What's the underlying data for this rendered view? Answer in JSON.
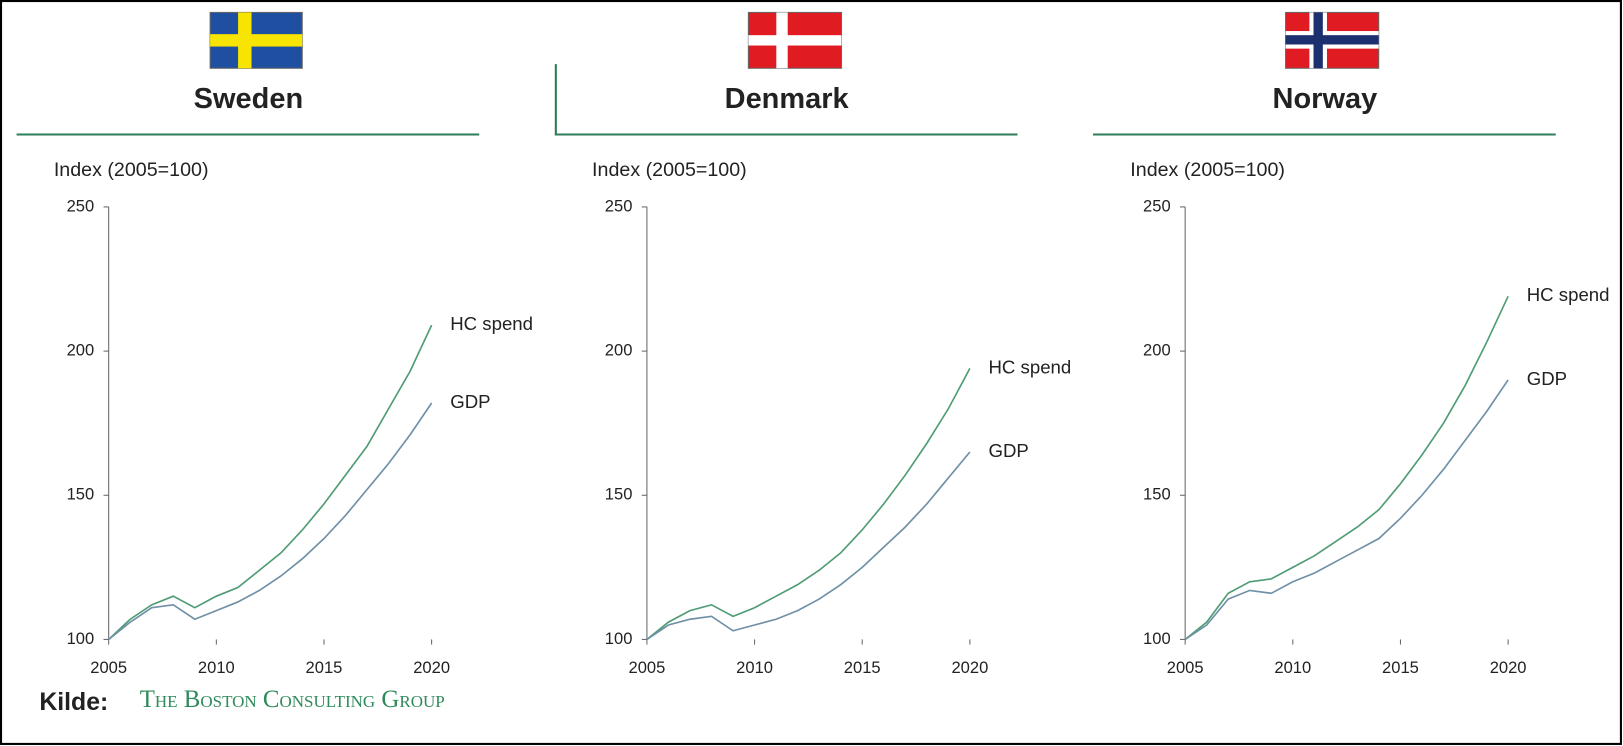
{
  "chart_data": [
    {
      "type": "line",
      "title": "Sweden",
      "y_label": "Index (2005=100)",
      "x": [
        2005,
        2006,
        2007,
        2008,
        2009,
        2010,
        2011,
        2012,
        2013,
        2014,
        2015,
        2016,
        2017,
        2018,
        2019,
        2020
      ],
      "xlim": [
        2005,
        2020
      ],
      "xticks": [
        2005,
        2010,
        2015,
        2020
      ],
      "ylim": [
        100,
        250
      ],
      "yticks": [
        100,
        150,
        200,
        250
      ],
      "series": [
        {
          "name": "HC spend",
          "color": "#4f9c74",
          "values": [
            100,
            107,
            112,
            115,
            111,
            115,
            118,
            124,
            130,
            138,
            147,
            157,
            167,
            180,
            193,
            209
          ]
        },
        {
          "name": "GDP",
          "color": "#6f90a6",
          "values": [
            100,
            106,
            111,
            112,
            107,
            110,
            113,
            117,
            122,
            128,
            135,
            143,
            152,
            161,
            171,
            182
          ]
        }
      ]
    },
    {
      "type": "line",
      "title": "Denmark",
      "y_label": "Index (2005=100)",
      "x": [
        2005,
        2006,
        2007,
        2008,
        2009,
        2010,
        2011,
        2012,
        2013,
        2014,
        2015,
        2016,
        2017,
        2018,
        2019,
        2020
      ],
      "xlim": [
        2005,
        2020
      ],
      "xticks": [
        2005,
        2010,
        2015,
        2020
      ],
      "ylim": [
        100,
        250
      ],
      "yticks": [
        100,
        150,
        200,
        250
      ],
      "series": [
        {
          "name": "HC spend",
          "color": "#4f9c74",
          "values": [
            100,
            106,
            110,
            112,
            108,
            111,
            115,
            119,
            124,
            130,
            138,
            147,
            157,
            168,
            180,
            194
          ]
        },
        {
          "name": "GDP",
          "color": "#6f90a6",
          "values": [
            100,
            105,
            107,
            108,
            103,
            105,
            107,
            110,
            114,
            119,
            125,
            132,
            139,
            147,
            156,
            165
          ]
        }
      ]
    },
    {
      "type": "line",
      "title": "Norway",
      "y_label": "Index (2005=100)",
      "x": [
        2005,
        2006,
        2007,
        2008,
        2009,
        2010,
        2011,
        2012,
        2013,
        2014,
        2015,
        2016,
        2017,
        2018,
        2019,
        2020
      ],
      "xlim": [
        2005,
        2020
      ],
      "xticks": [
        2005,
        2010,
        2015,
        2020
      ],
      "ylim": [
        100,
        250
      ],
      "yticks": [
        100,
        150,
        200,
        250
      ],
      "series": [
        {
          "name": "HC spend",
          "color": "#4f9c74",
          "values": [
            100,
            106,
            116,
            120,
            121,
            125,
            129,
            134,
            139,
            145,
            154,
            164,
            175,
            188,
            203,
            219
          ]
        },
        {
          "name": "GDP",
          "color": "#6f90a6",
          "values": [
            100,
            105,
            114,
            117,
            116,
            120,
            123,
            127,
            131,
            135,
            142,
            150,
            159,
            169,
            179,
            190
          ]
        }
      ]
    }
  ],
  "source": {
    "label": "Kilde:",
    "name": "The Boston Consulting Group"
  }
}
